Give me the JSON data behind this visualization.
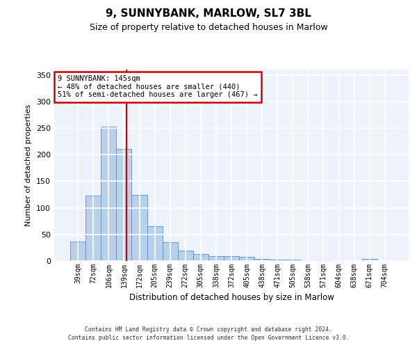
{
  "title": "9, SUNNYBANK, MARLOW, SL7 3BL",
  "subtitle": "Size of property relative to detached houses in Marlow",
  "xlabel": "Distribution of detached houses by size in Marlow",
  "ylabel": "Number of detached properties",
  "bar_labels": [
    "39sqm",
    "72sqm",
    "106sqm",
    "139sqm",
    "172sqm",
    "205sqm",
    "239sqm",
    "272sqm",
    "305sqm",
    "338sqm",
    "372sqm",
    "405sqm",
    "438sqm",
    "471sqm",
    "505sqm",
    "538sqm",
    "571sqm",
    "604sqm",
    "638sqm",
    "671sqm",
    "704sqm"
  ],
  "bar_values": [
    37,
    123,
    253,
    211,
    124,
    65,
    35,
    19,
    13,
    9,
    9,
    8,
    4,
    3,
    2,
    1,
    1,
    0,
    0,
    4,
    0
  ],
  "bar_color": "#b8d0ea",
  "bar_edge_color": "#5590c8",
  "background_color": "#eef2fa",
  "grid_color": "#ffffff",
  "annotation_line1": "9 SUNNYBANK: 145sqm",
  "annotation_line2": "← 48% of detached houses are smaller (440)",
  "annotation_line3": "51% of semi-detached houses are larger (467) →",
  "annotation_box_color": "#ffffff",
  "annotation_box_edge_color": "#cc0000",
  "vline_color": "#cc0000",
  "vline_x": 3.18,
  "ylim": [
    0,
    360
  ],
  "yticks": [
    0,
    50,
    100,
    150,
    200,
    250,
    300,
    350
  ],
  "footer_line1": "Contains HM Land Registry data © Crown copyright and database right 2024.",
  "footer_line2": "Contains public sector information licensed under the Open Government Licence v3.0."
}
